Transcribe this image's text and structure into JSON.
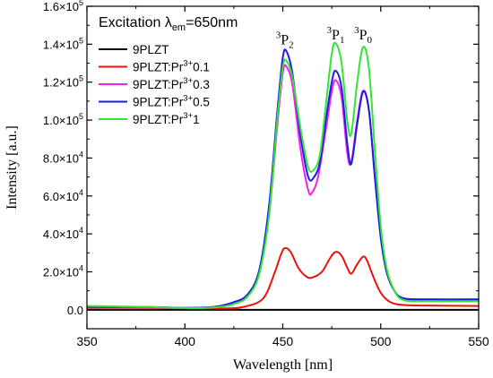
{
  "chart_data": {
    "type": "line",
    "title": "",
    "xlabel": "Wavelength [nm]",
    "ylabel": "Intensity [a.u.]",
    "xlim": [
      350,
      550
    ],
    "ylim": [
      -10000,
      160000
    ],
    "x_ticks": [
      350,
      400,
      450,
      500,
      550
    ],
    "y_ticks": [
      {
        "value": 0,
        "label": "0.0"
      },
      {
        "value": 20000,
        "label": "2.0×10",
        "exp": "4"
      },
      {
        "value": 40000,
        "label": "4.0×10",
        "exp": "4"
      },
      {
        "value": 60000,
        "label": "6.0×10",
        "exp": "4"
      },
      {
        "value": 80000,
        "label": "8.0×10",
        "exp": "4"
      },
      {
        "value": 100000,
        "label": "1.0×10",
        "exp": "5"
      },
      {
        "value": 120000,
        "label": "1.2×10",
        "exp": "5"
      },
      {
        "value": 140000,
        "label": "1.4×10",
        "exp": "5"
      },
      {
        "value": 160000,
        "label": "1.6×10",
        "exp": "5"
      }
    ],
    "legend": {
      "position": "top-left",
      "title": {
        "pre": "Excitation ",
        "lambda": "λ",
        "sub": "em",
        "post": "=650nm"
      }
    },
    "annotations": [
      {
        "sup": "3",
        "base": "P",
        "sub": "2",
        "x": 451,
        "y": 140000
      },
      {
        "sup": "3",
        "base": "P",
        "sub": "1",
        "x": 477,
        "y": 142500
      },
      {
        "sup": "3",
        "base": "P",
        "sub": "0",
        "x": 491,
        "y": 142500
      }
    ],
    "series": [
      {
        "name": "9PLZT",
        "base": "9PLZT",
        "sup": "",
        "tail": "",
        "color": "#000000",
        "points": [
          [
            350,
            0
          ],
          [
            550,
            0
          ]
        ]
      },
      {
        "name": "9PLZT:Pr3+0.1",
        "base": "9PLZT:Pr",
        "sup": "3+",
        "tail": "0.1",
        "color": "#e8140c",
        "points": [
          [
            350,
            1000
          ],
          [
            380,
            1000
          ],
          [
            400,
            800
          ],
          [
            420,
            700
          ],
          [
            430,
            1500
          ],
          [
            440,
            6000
          ],
          [
            446,
            20000
          ],
          [
            449,
            29000
          ],
          [
            451,
            32500
          ],
          [
            454,
            30500
          ],
          [
            458,
            22000
          ],
          [
            462,
            17500
          ],
          [
            465,
            17000
          ],
          [
            470,
            20000
          ],
          [
            474,
            27000
          ],
          [
            477,
            30500
          ],
          [
            480,
            28500
          ],
          [
            483,
            22000
          ],
          [
            485,
            19000
          ],
          [
            488,
            24000
          ],
          [
            491,
            28000
          ],
          [
            493,
            26000
          ],
          [
            496,
            18000
          ],
          [
            500,
            9000
          ],
          [
            505,
            4000
          ],
          [
            512,
            2500
          ],
          [
            525,
            2200
          ],
          [
            550,
            2000
          ]
        ]
      },
      {
        "name": "9PLZT:Pr3+0.3",
        "base": "9PLZT:Pr",
        "sup": "3+",
        "tail": "0.3",
        "color": "#f21ff0",
        "points": [
          [
            350,
            1200
          ],
          [
            380,
            1200
          ],
          [
            400,
            900
          ],
          [
            415,
            1500
          ],
          [
            425,
            4000
          ],
          [
            432,
            8000
          ],
          [
            438,
            20000
          ],
          [
            443,
            50000
          ],
          [
            447,
            95000
          ],
          [
            450,
            125000
          ],
          [
            452,
            128000
          ],
          [
            455,
            118000
          ],
          [
            459,
            85000
          ],
          [
            463,
            63000
          ],
          [
            465,
            62000
          ],
          [
            468,
            70000
          ],
          [
            472,
            95000
          ],
          [
            475,
            115000
          ],
          [
            477,
            121000
          ],
          [
            480,
            112000
          ],
          [
            483,
            82000
          ],
          [
            485,
            78000
          ],
          [
            488,
            100000
          ],
          [
            491,
            115500
          ],
          [
            494,
            105000
          ],
          [
            497,
            70000
          ],
          [
            500,
            40000
          ],
          [
            503,
            20000
          ],
          [
            507,
            10000
          ],
          [
            512,
            5500
          ],
          [
            525,
            5000
          ],
          [
            550,
            5000
          ]
        ]
      },
      {
        "name": "9PLZT:Pr3+0.5",
        "base": "9PLZT:Pr",
        "sup": "3+",
        "tail": "0.5",
        "color": "#1c1ce6",
        "points": [
          [
            350,
            1500
          ],
          [
            380,
            1500
          ],
          [
            400,
            1000
          ],
          [
            415,
            1500
          ],
          [
            425,
            4000
          ],
          [
            432,
            8000
          ],
          [
            438,
            21000
          ],
          [
            443,
            55000
          ],
          [
            447,
            102000
          ],
          [
            450,
            133000
          ],
          [
            452,
            136000
          ],
          [
            455,
            124000
          ],
          [
            459,
            92000
          ],
          [
            463,
            70000
          ],
          [
            466,
            70000
          ],
          [
            469,
            78000
          ],
          [
            472,
            100000
          ],
          [
            475,
            120000
          ],
          [
            477,
            126000
          ],
          [
            480,
            117000
          ],
          [
            483,
            87000
          ],
          [
            485,
            77000
          ],
          [
            488,
            98000
          ],
          [
            491,
            115000
          ],
          [
            494,
            105000
          ],
          [
            497,
            70000
          ],
          [
            500,
            38000
          ],
          [
            503,
            20000
          ],
          [
            507,
            10000
          ],
          [
            512,
            6000
          ],
          [
            525,
            5500
          ],
          [
            550,
            5500
          ]
        ]
      },
      {
        "name": "9PLZT:Pr3+1",
        "base": "9PLZT:Pr",
        "sup": "3+",
        "tail": "1",
        "color": "#32e632",
        "points": [
          [
            350,
            2000
          ],
          [
            380,
            1500
          ],
          [
            400,
            900
          ],
          [
            415,
            1200
          ],
          [
            425,
            3000
          ],
          [
            432,
            7000
          ],
          [
            438,
            19000
          ],
          [
            443,
            50000
          ],
          [
            447,
            98000
          ],
          [
            450,
            128000
          ],
          [
            452,
            131000
          ],
          [
            455,
            122000
          ],
          [
            459,
            96000
          ],
          [
            463,
            75000
          ],
          [
            466,
            74000
          ],
          [
            469,
            82000
          ],
          [
            472,
            108000
          ],
          [
            475,
            135000
          ],
          [
            477,
            140500
          ],
          [
            480,
            130000
          ],
          [
            483,
            99000
          ],
          [
            485,
            93000
          ],
          [
            488,
            120000
          ],
          [
            491,
            138500
          ],
          [
            494,
            127000
          ],
          [
            497,
            84000
          ],
          [
            500,
            44000
          ],
          [
            503,
            22000
          ],
          [
            507,
            10000
          ],
          [
            512,
            5000
          ],
          [
            525,
            4500
          ],
          [
            550,
            4500
          ]
        ]
      }
    ]
  }
}
